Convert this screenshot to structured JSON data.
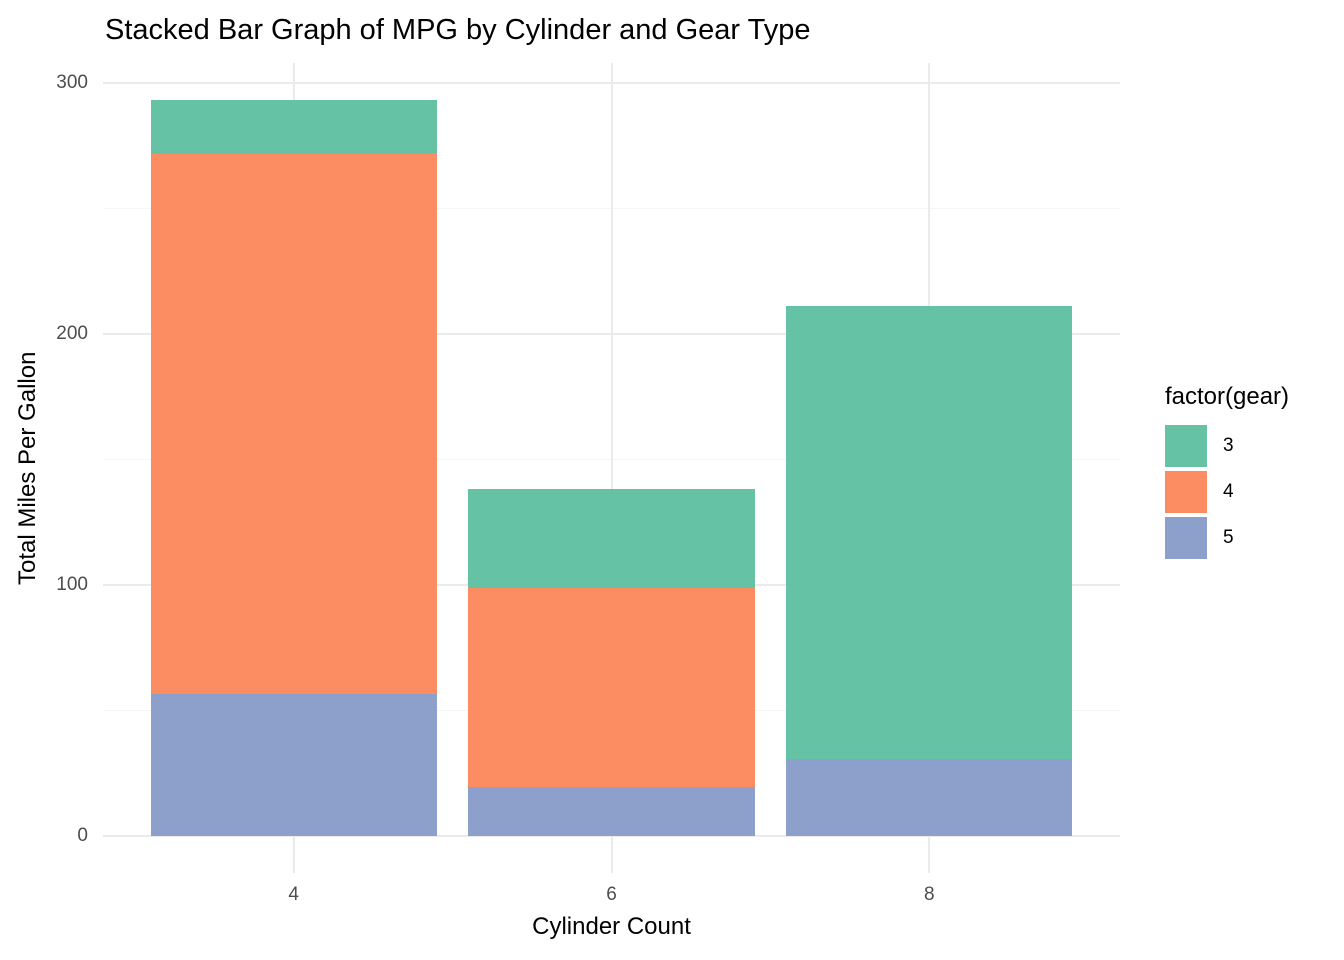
{
  "chart_data": {
    "type": "bar",
    "stacked": true,
    "title": "Stacked Bar Graph of MPG by Cylinder and Gear Type",
    "xlabel": "Cylinder Count",
    "ylabel": "Total Miles Per Gallon",
    "categories": [
      "4",
      "6",
      "8"
    ],
    "series": [
      {
        "name": "3",
        "color": "#66C2A5",
        "values": [
          21.5,
          39.5,
          180.6
        ]
      },
      {
        "name": "4",
        "color": "#FC8D62",
        "values": [
          215.4,
          79.0,
          0.0
        ]
      },
      {
        "name": "5",
        "color": "#8DA0CB",
        "values": [
          56.4,
          19.7,
          30.8
        ]
      }
    ],
    "stack_order_bottom_to_top": [
      "5",
      "4",
      "3"
    ],
    "totals": [
      293.3,
      138.2,
      211.4
    ],
    "y_ticks": [
      "0",
      "100",
      "200",
      "300"
    ],
    "y_tick_values": [
      0,
      100,
      200,
      300
    ],
    "y_minor_tick_values": [
      50,
      150,
      250
    ],
    "ylim": [
      0,
      308
    ],
    "grid": "horizontal major+minor, vertical major at categories",
    "legend": {
      "title": "factor(gear)",
      "position": "right",
      "entries": [
        {
          "label": "3",
          "color": "#66C2A5"
        },
        {
          "label": "4",
          "color": "#FC8D62"
        },
        {
          "label": "5",
          "color": "#8DA0CB"
        }
      ]
    }
  },
  "style": {
    "background": "#FFFFFF",
    "gridline_major": "#EBEBEB",
    "gridline_minor": "#F5F5F5",
    "tick_label_color": "#4D4D4D",
    "text_color": "#000000"
  }
}
